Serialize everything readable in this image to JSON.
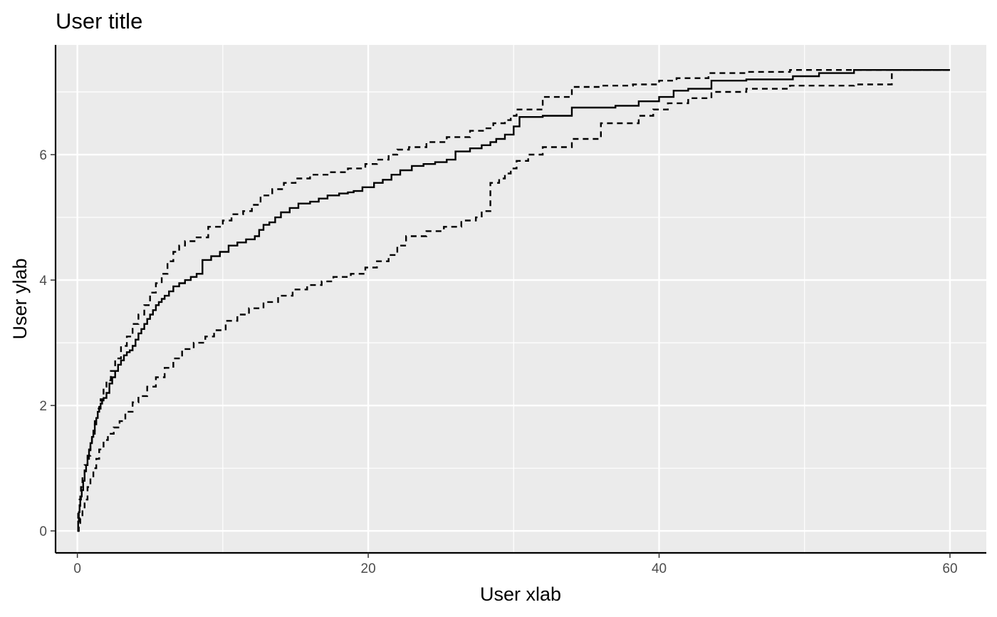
{
  "chart_data": {
    "type": "line",
    "title": "User title",
    "xlabel": "User xlab",
    "ylabel": "User ylab",
    "xlim": [
      -1.5,
      62.5
    ],
    "ylim": [
      -0.35,
      7.75
    ],
    "x_ticks": [
      0,
      20,
      40,
      60
    ],
    "y_ticks": [
      0,
      2,
      4,
      6
    ],
    "x_tick_labels": [
      "0",
      "20",
      "40",
      "60"
    ],
    "y_tick_labels": [
      "0",
      "2",
      "4",
      "6"
    ],
    "grid": true,
    "panel_background": "#ebebeb",
    "series": [
      {
        "style": "solid",
        "color": "#000000",
        "step": true,
        "x": [
          0,
          0.05,
          0.1,
          0.15,
          0.2,
          0.3,
          0.4,
          0.5,
          0.6,
          0.7,
          0.8,
          0.9,
          1.0,
          1.1,
          1.2,
          1.3,
          1.4,
          1.5,
          1.6,
          1.7,
          1.8,
          2.0,
          2.2,
          2.4,
          2.6,
          2.8,
          3.0,
          3.2,
          3.4,
          3.6,
          3.8,
          4.0,
          4.2,
          4.4,
          4.6,
          4.8,
          5.0,
          5.2,
          5.4,
          5.6,
          5.8,
          6.0,
          6.3,
          6.6,
          7.0,
          7.4,
          7.8,
          8.2,
          8.6,
          9.2,
          9.8,
          10.4,
          11.0,
          11.6,
          12.2,
          12.5,
          12.8,
          13.2,
          13.6,
          14.0,
          14.6,
          15.2,
          16.0,
          16.6,
          17.2,
          18.0,
          18.6,
          19.0,
          19.6,
          20.4,
          21.0,
          21.6,
          22.2,
          23.0,
          23.8,
          24.6,
          25.4,
          26.0,
          27.0,
          27.8,
          28.4,
          28.8,
          29.4,
          30.0,
          30.4,
          32.0,
          34.0,
          37.0,
          38.6,
          40.0,
          41.0,
          42.0,
          43.6,
          46.0,
          49.2,
          51.0,
          53.4,
          56.0,
          60.0
        ],
        "y": [
          0,
          0.15,
          0.3,
          0.4,
          0.55,
          0.65,
          0.8,
          0.95,
          1.05,
          1.15,
          1.3,
          1.4,
          1.5,
          1.6,
          1.7,
          1.8,
          1.9,
          1.98,
          2.03,
          2.08,
          2.12,
          2.2,
          2.35,
          2.45,
          2.55,
          2.65,
          2.72,
          2.8,
          2.85,
          2.88,
          2.95,
          3.05,
          3.15,
          3.22,
          3.3,
          3.38,
          3.45,
          3.52,
          3.6,
          3.65,
          3.7,
          3.75,
          3.82,
          3.9,
          3.95,
          4.0,
          4.05,
          4.1,
          4.32,
          4.38,
          4.45,
          4.55,
          4.6,
          4.65,
          4.7,
          4.8,
          4.88,
          4.92,
          5.0,
          5.08,
          5.15,
          5.22,
          5.25,
          5.3,
          5.35,
          5.38,
          5.4,
          5.42,
          5.48,
          5.55,
          5.6,
          5.68,
          5.75,
          5.82,
          5.85,
          5.88,
          5.92,
          6.05,
          6.1,
          6.15,
          6.2,
          6.25,
          6.32,
          6.45,
          6.6,
          6.62,
          6.75,
          6.78,
          6.85,
          6.92,
          7.02,
          7.05,
          7.18,
          7.2,
          7.25,
          7.3,
          7.35,
          7.35,
          7.35
        ]
      },
      {
        "style": "dashed",
        "color": "#000000",
        "step": true,
        "x": [
          0,
          0.05,
          0.15,
          0.25,
          0.35,
          0.5,
          0.7,
          0.9,
          1.0,
          1.2,
          1.4,
          1.6,
          1.8,
          2.0,
          2.3,
          2.6,
          3.0,
          3.4,
          3.8,
          4.2,
          4.6,
          5.0,
          5.4,
          5.8,
          6.2,
          6.6,
          7.0,
          7.4,
          8.2,
          9.0,
          10.0,
          10.6,
          11.4,
          12.0,
          12.6,
          13.4,
          14.2,
          15.0,
          16.0,
          17.2,
          18.6,
          19.8,
          20.6,
          21.4,
          22.0,
          22.8,
          24.0,
          25.4,
          27.0,
          28.0,
          28.6,
          29.4,
          29.8,
          30.2,
          32.0,
          34.0,
          36.0,
          38.2,
          40.0,
          41.2,
          43.4,
          46.0,
          49.0,
          53.4,
          56.0,
          60.0
        ],
        "y": [
          0.05,
          0.3,
          0.5,
          0.7,
          0.9,
          1.05,
          1.2,
          1.4,
          1.55,
          1.75,
          1.95,
          2.1,
          2.3,
          2.4,
          2.55,
          2.75,
          2.95,
          3.1,
          3.3,
          3.45,
          3.6,
          3.8,
          3.95,
          4.1,
          4.3,
          4.45,
          4.55,
          4.62,
          4.68,
          4.85,
          4.95,
          5.05,
          5.1,
          5.2,
          5.35,
          5.45,
          5.55,
          5.62,
          5.68,
          5.72,
          5.78,
          5.85,
          5.92,
          6.0,
          6.08,
          6.12,
          6.2,
          6.28,
          6.38,
          6.42,
          6.5,
          6.55,
          6.62,
          6.72,
          6.92,
          7.08,
          7.1,
          7.12,
          7.18,
          7.22,
          7.3,
          7.32,
          7.35,
          7.35,
          7.35,
          7.35
        ]
      },
      {
        "style": "dashed",
        "color": "#000000",
        "step": true,
        "x": [
          0,
          0.1,
          0.2,
          0.35,
          0.5,
          0.7,
          0.9,
          1.1,
          1.3,
          1.5,
          1.8,
          2.1,
          2.5,
          2.9,
          3.3,
          3.8,
          4.2,
          4.8,
          5.4,
          6.0,
          6.6,
          7.2,
          8.0,
          8.8,
          9.4,
          10.2,
          11.0,
          11.8,
          12.8,
          13.8,
          14.8,
          15.8,
          16.8,
          17.6,
          18.8,
          19.8,
          20.6,
          21.4,
          22.0,
          22.6,
          24.0,
          25.2,
          26.4,
          27.4,
          27.8,
          28.4,
          29.0,
          29.4,
          29.8,
          30.2,
          31.0,
          32.0,
          34.0,
          36.0,
          38.6,
          39.6,
          40.6,
          42.0,
          43.6,
          46.0,
          49.0,
          53.4,
          56.0,
          60.0
        ],
        "y": [
          0,
          0.1,
          0.2,
          0.35,
          0.5,
          0.7,
          0.85,
          1.0,
          1.15,
          1.3,
          1.45,
          1.55,
          1.65,
          1.75,
          1.9,
          2.05,
          2.15,
          2.3,
          2.45,
          2.6,
          2.75,
          2.9,
          3.0,
          3.1,
          3.2,
          3.35,
          3.45,
          3.55,
          3.65,
          3.75,
          3.85,
          3.92,
          3.98,
          4.05,
          4.1,
          4.2,
          4.3,
          4.4,
          4.55,
          4.7,
          4.78,
          4.85,
          4.95,
          5.0,
          5.1,
          5.55,
          5.62,
          5.7,
          5.78,
          5.9,
          6.0,
          6.12,
          6.25,
          6.5,
          6.62,
          6.72,
          6.82,
          6.9,
          7.0,
          7.05,
          7.1,
          7.12,
          7.35,
          7.35
        ]
      }
    ]
  }
}
